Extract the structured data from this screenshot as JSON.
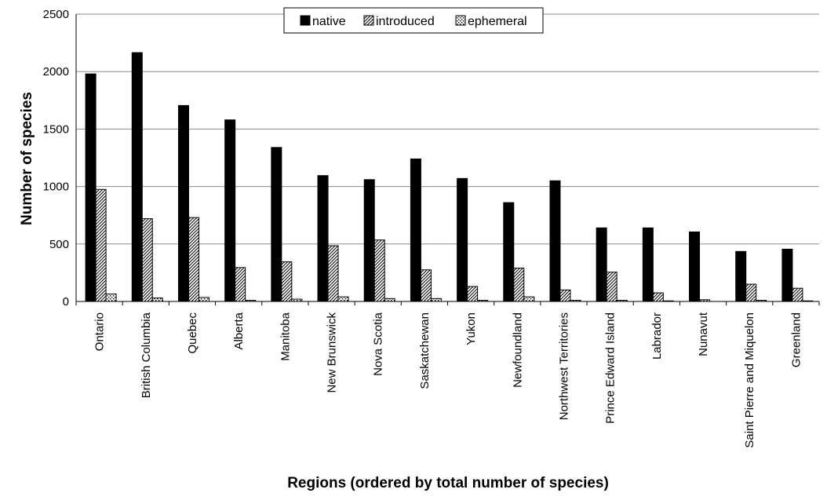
{
  "chart_data": {
    "type": "bar",
    "title": "",
    "xlabel": "Regions (ordered by total number of species)",
    "ylabel": "Number of species",
    "ylim": [
      0,
      2500
    ],
    "yticks": [
      0,
      500,
      1000,
      1500,
      2000,
      2500
    ],
    "grid": true,
    "legend_position": "top-center",
    "categories": [
      "Ontario",
      "British Columbia",
      "Quebec",
      "Alberta",
      "Manitoba",
      "New Brunswick",
      "Nova Scotia",
      "Saskatchewan",
      "Yukon",
      "Newfoundland",
      "Northwest Territories",
      "Prince Edward Island",
      "Labrador",
      "Nunavut",
      "Saint Pierre and Miquelon",
      "Greenland"
    ],
    "series": [
      {
        "name": "native",
        "fill": "solid",
        "color": "#000000",
        "values": [
          1980,
          2165,
          1705,
          1580,
          1340,
          1095,
          1060,
          1240,
          1070,
          860,
          1050,
          640,
          640,
          605,
          435,
          455
        ]
      },
      {
        "name": "introduced",
        "fill": "diagonal-hatch",
        "color": "#000000",
        "values": [
          975,
          720,
          730,
          295,
          345,
          485,
          535,
          275,
          130,
          290,
          100,
          255,
          75,
          15,
          150,
          115
        ]
      },
      {
        "name": "ephemeral",
        "fill": "dotted",
        "color": "#000000",
        "values": [
          65,
          30,
          35,
          10,
          20,
          40,
          25,
          25,
          10,
          40,
          10,
          10,
          5,
          0,
          10,
          5
        ]
      }
    ]
  }
}
